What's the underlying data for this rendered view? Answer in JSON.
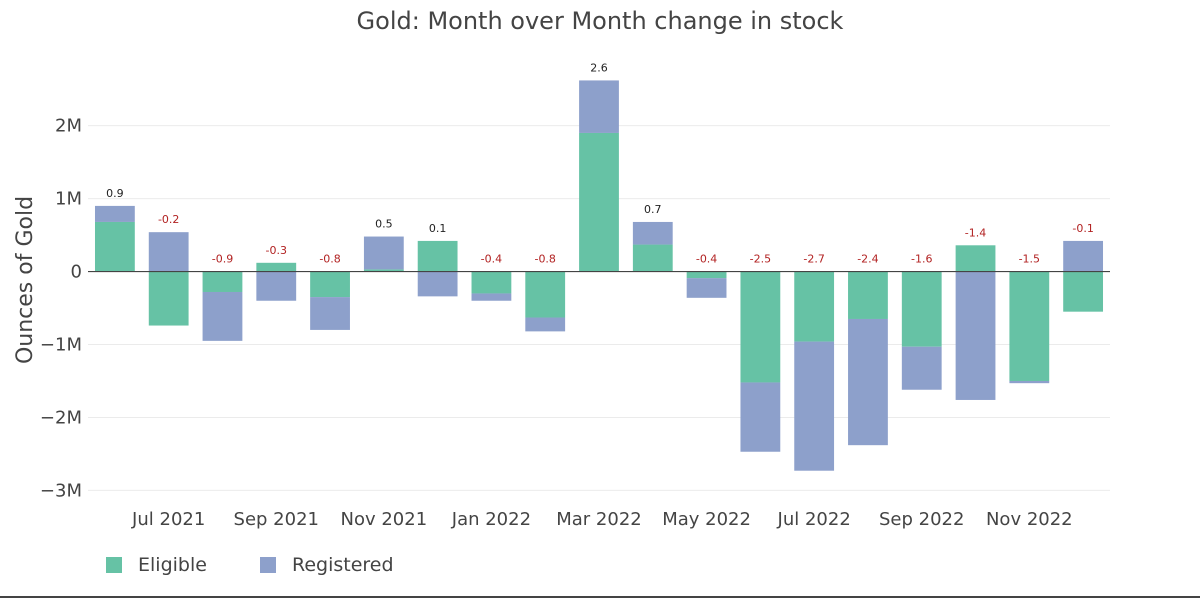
{
  "chart_data": {
    "type": "bar",
    "stacked": true,
    "title": "Gold: Month over Month change in stock",
    "xlabel": "",
    "ylabel": "Ounces of Gold",
    "ylim": [
      -3200000,
      2900000
    ],
    "yticks": [
      -3000000,
      -2000000,
      -1000000,
      0,
      1000000,
      2000000
    ],
    "ytick_labels": [
      "−3M",
      "−2M",
      "−1M",
      "0",
      "1M",
      "2M"
    ],
    "categories": [
      "2021-06",
      "2021-07",
      "2021-08",
      "2021-09",
      "2021-10",
      "2021-11",
      "2021-12",
      "2022-01",
      "2022-02",
      "2022-03",
      "2022-04",
      "2022-05",
      "2022-06",
      "2022-07",
      "2022-08",
      "2022-09",
      "2022-10",
      "2022-11",
      "2022-12"
    ],
    "xtick_labels": [
      {
        "category": "2021-07",
        "label": "Jul 2021"
      },
      {
        "category": "2021-09",
        "label": "Sep 2021"
      },
      {
        "category": "2021-11",
        "label": "Nov 2021"
      },
      {
        "category": "2022-01",
        "label": "Jan 2022"
      },
      {
        "category": "2022-03",
        "label": "Mar 2022"
      },
      {
        "category": "2022-05",
        "label": "May 2022"
      },
      {
        "category": "2022-07",
        "label": "Jul 2022"
      },
      {
        "category": "2022-09",
        "label": "Sep 2022"
      },
      {
        "category": "2022-11",
        "label": "Nov 2022"
      }
    ],
    "series": [
      {
        "name": "Eligible",
        "color": "#66c2a5",
        "values": [
          680000,
          -740000,
          -280000,
          120000,
          -350000,
          30000,
          420000,
          -300000,
          -630000,
          1900000,
          370000,
          -90000,
          -1520000,
          -960000,
          -650000,
          -1030000,
          360000,
          -1500000,
          -550000
        ]
      },
      {
        "name": "Registered",
        "color": "#8da0cb",
        "values": [
          220000,
          540000,
          -670000,
          -400000,
          -450000,
          450000,
          -340000,
          -100000,
          -190000,
          720000,
          310000,
          -270000,
          -950000,
          -1770000,
          -1730000,
          -590000,
          -1760000,
          -30000,
          420000
        ]
      }
    ],
    "data_labels": [
      "0.9",
      "-0.2",
      "-0.9",
      "-0.3",
      "-0.8",
      "0.5",
      "0.1",
      "-0.4",
      "-0.8",
      "2.6",
      "0.7",
      "-0.4",
      "-2.5",
      "-2.7",
      "-2.4",
      "-1.6",
      "-1.4",
      "-1.5",
      "-0.1"
    ],
    "label_colors": {
      "positive": "#222222",
      "negative": "#b22222"
    },
    "grid": true,
    "legend_position": "bottom-left"
  }
}
